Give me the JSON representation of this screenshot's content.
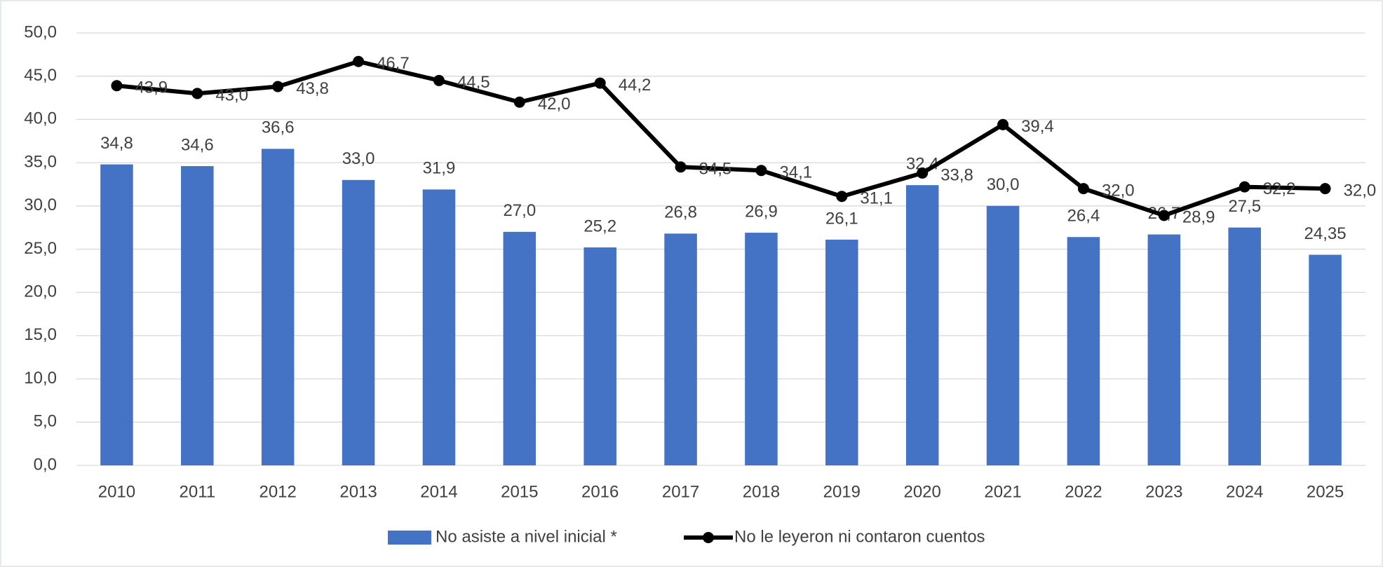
{
  "chart_data": {
    "type": "bar",
    "categories": [
      "2010",
      "2011",
      "2012",
      "2013",
      "2014",
      "2015",
      "2016",
      "2017",
      "2018",
      "2019",
      "2020",
      "2021",
      "2022",
      "2023",
      "2024",
      "2025"
    ],
    "series": [
      {
        "name": "No asiste a nivel inicial *",
        "type": "bar",
        "color": "#4472c4",
        "values": [
          34.8,
          34.6,
          36.6,
          33.0,
          31.9,
          27.0,
          25.2,
          26.8,
          26.9,
          26.1,
          32.4,
          30.0,
          26.4,
          26.7,
          27.5,
          24.35
        ],
        "value_labels": [
          "34,8",
          "34,6",
          "36,6",
          "33,0",
          "31,9",
          "27,0",
          "25,2",
          "26,8",
          "26,9",
          "26,1",
          "32,4",
          "30,0",
          "26,4",
          "26,7",
          "27,5",
          "24,35"
        ]
      },
      {
        "name": "No le leyeron ni contaron cuentos",
        "type": "line",
        "color": "#000000",
        "values": [
          43.9,
          43.0,
          43.8,
          46.7,
          44.5,
          42.0,
          44.2,
          34.5,
          34.1,
          31.1,
          33.8,
          39.4,
          32.0,
          28.9,
          32.2,
          32.0
        ],
        "value_labels": [
          "43,9",
          "43,0",
          "43,8",
          "46,7",
          "44,5",
          "42,0",
          "44,2",
          "34,5",
          "34,1",
          "31,1",
          "33,8",
          "39,4",
          "32,0",
          "28,9",
          "32,2",
          "32,0"
        ]
      }
    ],
    "ylim": [
      0,
      50
    ],
    "yticks": [
      {
        "value": 0,
        "label": "0,0"
      },
      {
        "value": 5,
        "label": "5,0"
      },
      {
        "value": 10,
        "label": "10,0"
      },
      {
        "value": 15,
        "label": "15,0"
      },
      {
        "value": 20,
        "label": "20,0"
      },
      {
        "value": 25,
        "label": "25,0"
      },
      {
        "value": 30,
        "label": "30,0"
      },
      {
        "value": 35,
        "label": "35,0"
      },
      {
        "value": 40,
        "label": "40,0"
      },
      {
        "value": 45,
        "label": "45,0"
      },
      {
        "value": 50,
        "label": "50,0"
      }
    ],
    "grid": true,
    "legend": "bottom"
  }
}
